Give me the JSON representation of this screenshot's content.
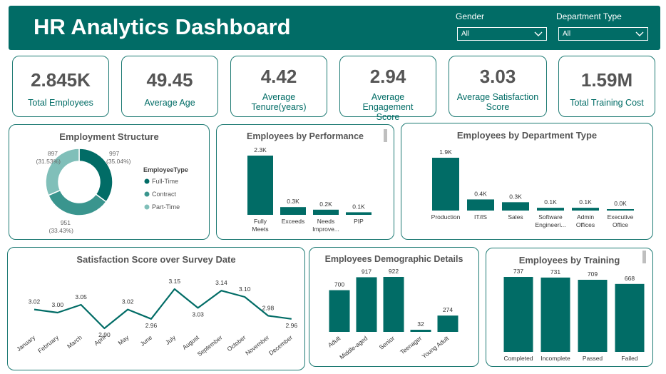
{
  "header": {
    "title": "HR Analytics Dashboard",
    "filters": [
      {
        "label": "Gender",
        "value": "All"
      },
      {
        "label": "Department Type",
        "value": "All"
      }
    ]
  },
  "kpis": [
    {
      "value": "2.845K",
      "label": "Total Employees"
    },
    {
      "value": "49.45",
      "label": "Average Age"
    },
    {
      "value": "4.42",
      "label": "Average Tenure(years)"
    },
    {
      "value": "2.94",
      "label": "Average Engagement Score"
    },
    {
      "value": "3.03",
      "label": "Average Satisfaction Score"
    },
    {
      "value": "1.59M",
      "label": "Total Training Cost"
    }
  ],
  "colors": {
    "primary": "#016c66",
    "mid": "#3a958e",
    "light": "#80bfb9"
  },
  "chart_data": [
    {
      "type": "pie",
      "title": "Employment Structure",
      "legend_title": "EmployeeType",
      "legend_position": "right",
      "series": [
        {
          "name": "Full-Time",
          "value": 997,
          "percent_label": "(35.04%)"
        },
        {
          "name": "Contract",
          "value": 951,
          "percent_label": "(33.43%)"
        },
        {
          "name": "Part-Time",
          "value": 897,
          "percent_label": "(31.53%)"
        }
      ]
    },
    {
      "type": "bar",
      "title": "Employees by Performance",
      "categories": [
        "Fully Meets",
        "Exceeds",
        "Needs Improve...",
        "PIP"
      ],
      "values": [
        2300,
        300,
        200,
        100
      ],
      "data_labels": [
        "2.3K",
        "0.3K",
        "0.2K",
        "0.1K"
      ]
    },
    {
      "type": "bar",
      "title": "Employees by Department Type",
      "categories": [
        "Production",
        "IT/IS",
        "Sales",
        "Software Engineeri...",
        "Admin Offices",
        "Executive Office"
      ],
      "values": [
        1900,
        400,
        300,
        100,
        100,
        0
      ],
      "data_labels": [
        "1.9K",
        "0.4K",
        "0.3K",
        "0.1K",
        "0.1K",
        "0.0K"
      ]
    },
    {
      "type": "line",
      "title": "Satisfaction Score over Survey Date",
      "x": [
        "January",
        "February",
        "March",
        "April",
        "May",
        "June",
        "July",
        "August",
        "September",
        "October",
        "November",
        "December"
      ],
      "values": [
        3.02,
        3.0,
        3.05,
        2.9,
        3.02,
        2.96,
        3.15,
        3.03,
        3.14,
        3.1,
        2.98,
        2.96
      ],
      "data_labels": [
        "3.02",
        "3.00",
        "3.05",
        "2.90",
        "3.02",
        "2.96",
        "3.15",
        "3.03",
        "3.14",
        "3.10",
        "2.98",
        "2.96"
      ]
    },
    {
      "type": "bar",
      "title": "Employees Demographic Details",
      "categories": [
        "Adult",
        "Middle-aged",
        "Senior",
        "Teenager",
        "Young Adult"
      ],
      "values": [
        700,
        917,
        922,
        32,
        274
      ],
      "data_labels": [
        "700",
        "917",
        "922",
        "32",
        "274"
      ]
    },
    {
      "type": "bar",
      "title": "Employees by Training",
      "categories": [
        "Completed",
        "Incomplete",
        "Passed",
        "Failed"
      ],
      "values": [
        737,
        731,
        709,
        668
      ],
      "data_labels": [
        "737",
        "731",
        "709",
        "668"
      ]
    }
  ]
}
